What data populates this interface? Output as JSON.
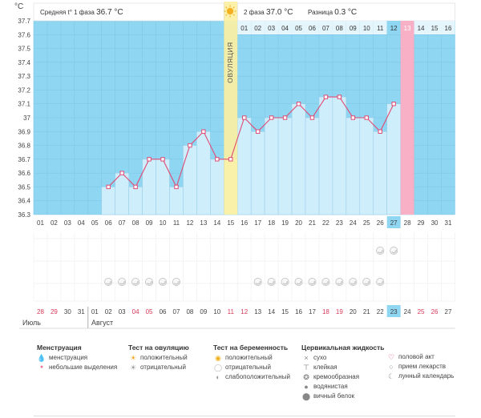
{
  "unit": "°C",
  "header": {
    "phase1_label": "Средняя t° 1 фаза",
    "phase1_value": "36.7 °C",
    "phase2_label": "2 фаза",
    "phase2_value": "37.0 °C",
    "diff_label": "Разница",
    "diff_value": "0.3 °C"
  },
  "ovulation_label": "ОВУЛЯЦИЯ",
  "phase2_days": [
    "01",
    "02",
    "03",
    "04",
    "05",
    "06",
    "07",
    "08",
    "09",
    "10",
    "11",
    "12",
    "13",
    "14",
    "15",
    "16"
  ],
  "cycle_days": [
    "01",
    "02",
    "03",
    "04",
    "05",
    "06",
    "07",
    "08",
    "09",
    "10",
    "11",
    "12",
    "13",
    "14",
    "15",
    "16",
    "17",
    "18",
    "19",
    "20",
    "21",
    "22",
    "23",
    "24",
    "25",
    "26",
    "27",
    "28",
    "29",
    "30",
    "31"
  ],
  "calendar_dates": [
    "28",
    "29",
    "30",
    "31",
    "01",
    "02",
    "03",
    "04",
    "05",
    "06",
    "07",
    "08",
    "09",
    "10",
    "11",
    "12",
    "13",
    "14",
    "15",
    "16",
    "17",
    "18",
    "19",
    "20",
    "21",
    "22",
    "23",
    "24",
    "25",
    "26",
    "27"
  ],
  "calendar_red": [
    0,
    1,
    7,
    8,
    14,
    15,
    21,
    22,
    28,
    29
  ],
  "months": {
    "first": "Июль",
    "second": "Август"
  },
  "y_ticks": [
    "37.7",
    "37.6",
    "37.5",
    "37.4",
    "37.3",
    "37.2",
    "37.1",
    "37",
    "36.9",
    "36.8",
    "36.7",
    "36.6",
    "36.5",
    "36.4",
    "36.3"
  ],
  "chart_data": {
    "type": "area",
    "ylim": [
      36.3,
      37.7
    ],
    "x": [
      "06",
      "07",
      "08",
      "09",
      "10",
      "11",
      "12",
      "13",
      "14",
      "15",
      "16",
      "17",
      "18",
      "19",
      "20",
      "21",
      "22",
      "23",
      "24",
      "25",
      "26",
      "27"
    ],
    "values": [
      36.5,
      36.6,
      36.5,
      36.7,
      36.7,
      36.5,
      36.8,
      36.9,
      36.7,
      36.7,
      37.0,
      36.9,
      37.0,
      37.0,
      37.1,
      37.0,
      37.15,
      37.15,
      37.0,
      37.0,
      36.9,
      37.1
    ],
    "ovulation_day": "15",
    "current_day": "27",
    "period_day": "28"
  },
  "colors": {
    "plot_bg": "#8fd6f2",
    "bar_fill": "#cfeefc",
    "bar_stroke": "#9ccfe8",
    "line": "#e04b73",
    "ovulation": "#fdf0a0",
    "period": "#f7b0c5",
    "today": "#8fd6f2",
    "red_date": "#d83a5a"
  },
  "marks_row1_days": [
    "26",
    "27"
  ],
  "marks_row2_days": [
    "06",
    "07",
    "08",
    "09",
    "10",
    "11",
    "17",
    "18",
    "19",
    "20",
    "21",
    "22",
    "23",
    "24",
    "25",
    "26"
  ],
  "legend": {
    "menstruation": {
      "title": "Менструация",
      "items": [
        "менструация",
        "небольшие выделения"
      ]
    },
    "ovulation_test": {
      "title": "Тест на овуляцию",
      "items": [
        "положительный",
        "отрицательный"
      ]
    },
    "pregnancy_test": {
      "title": "Тест на беременность",
      "items": [
        "положительный",
        "отрицательный",
        "слабоположительный"
      ]
    },
    "cervical_fluid": {
      "title": "Цервикальная жидкость",
      "items": [
        "сухо",
        "клейкая",
        "кремообразная",
        "водянистая",
        "вичный белок"
      ]
    },
    "other": {
      "items": [
        "половой акт",
        "прием лекарств",
        "лунный календарь"
      ]
    }
  },
  "icons": {
    "drop": "drop-icon",
    "small_drop": "small-drop-icon",
    "sun": "sun-icon",
    "sun_gray": "sun-gray-icon",
    "test_pos": "test-positive-icon",
    "test_neg": "test-negative-icon",
    "test_weak": "test-weak-icon",
    "dry": "cross-icon",
    "sticky": "sticky-icon",
    "creamy": "creamy-icon",
    "watery": "watery-icon",
    "eggwhite": "eggwhite-icon",
    "heart": "heart-icon",
    "pill": "pill-icon",
    "moon": "moon-icon"
  }
}
